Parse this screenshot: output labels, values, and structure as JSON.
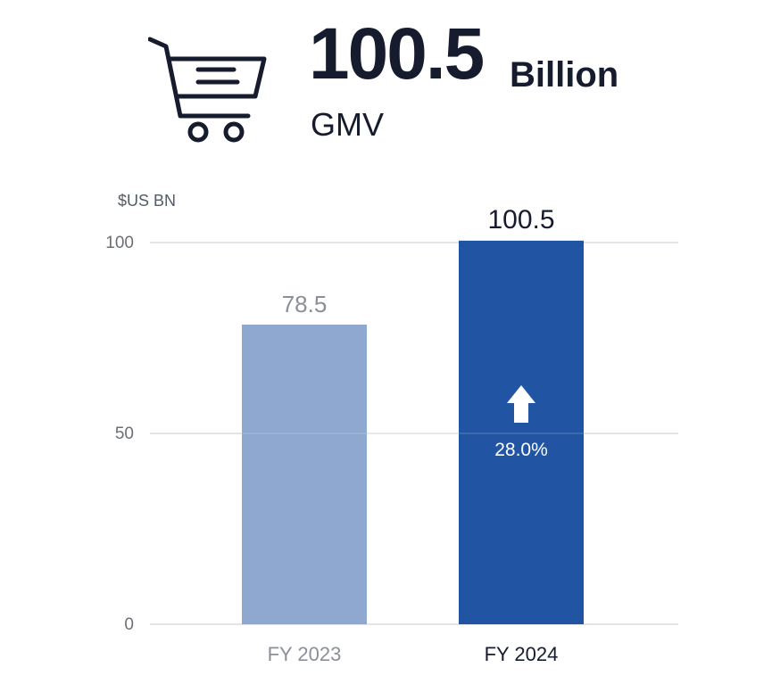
{
  "header": {
    "icon": "shopping-cart-icon",
    "value": "100.5",
    "unit": "Billion",
    "label": "GMV"
  },
  "chart_data": {
    "type": "bar",
    "unit_label": "$US BN",
    "categories": [
      "FY 2023",
      "FY 2024"
    ],
    "values": [
      78.5,
      100.5
    ],
    "value_labels": [
      "78.5",
      "100.5"
    ],
    "ylim": [
      0,
      100
    ],
    "yticks": [
      0,
      50,
      100
    ],
    "grid": true,
    "colors": [
      "#8fa8d0",
      "#2154a3"
    ],
    "growth": {
      "label": "28.0%",
      "icon": "arrow-up-icon",
      "category": "FY 2024"
    }
  }
}
